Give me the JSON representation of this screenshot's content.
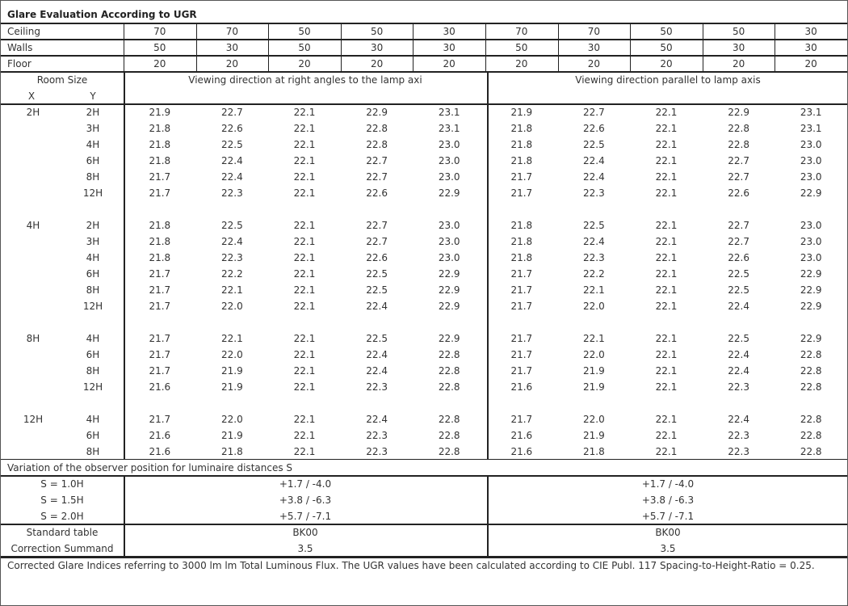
{
  "title": "Glare Evaluation According to UGR",
  "reflectances": [
    {
      "label": "Ceiling",
      "values": [
        "70",
        "70",
        "50",
        "50",
        "30",
        "70",
        "70",
        "50",
        "50",
        "30"
      ]
    },
    {
      "label": "Walls",
      "values": [
        "50",
        "30",
        "50",
        "30",
        "30",
        "50",
        "30",
        "50",
        "30",
        "30"
      ]
    },
    {
      "label": "Floor",
      "values": [
        "20",
        "20",
        "20",
        "20",
        "20",
        "20",
        "20",
        "20",
        "20",
        "20"
      ]
    }
  ],
  "room_size_label": "Room Size",
  "x_label": "X",
  "y_label": "Y",
  "direction_right_angles": "Viewing direction at right angles to the lamp axi",
  "direction_parallel": "Viewing direction parallel to lamp axis",
  "groups": [
    {
      "x": "2H",
      "rows": [
        {
          "y": "2H",
          "values": [
            "21.9",
            "22.7",
            "22.1",
            "22.9",
            "23.1",
            "21.9",
            "22.7",
            "22.1",
            "22.9",
            "23.1"
          ]
        },
        {
          "y": "3H",
          "values": [
            "21.8",
            "22.6",
            "22.1",
            "22.8",
            "23.1",
            "21.8",
            "22.6",
            "22.1",
            "22.8",
            "23.1"
          ]
        },
        {
          "y": "4H",
          "values": [
            "21.8",
            "22.5",
            "22.1",
            "22.8",
            "23.0",
            "21.8",
            "22.5",
            "22.1",
            "22.8",
            "23.0"
          ]
        },
        {
          "y": "6H",
          "values": [
            "21.8",
            "22.4",
            "22.1",
            "22.7",
            "23.0",
            "21.8",
            "22.4",
            "22.1",
            "22.7",
            "23.0"
          ]
        },
        {
          "y": "8H",
          "values": [
            "21.7",
            "22.4",
            "22.1",
            "22.7",
            "23.0",
            "21.7",
            "22.4",
            "22.1",
            "22.7",
            "23.0"
          ]
        },
        {
          "y": "12H",
          "values": [
            "21.7",
            "22.3",
            "22.1",
            "22.6",
            "22.9",
            "21.7",
            "22.3",
            "22.1",
            "22.6",
            "22.9"
          ]
        }
      ]
    },
    {
      "x": "4H",
      "rows": [
        {
          "y": "2H",
          "values": [
            "21.8",
            "22.5",
            "22.1",
            "22.7",
            "23.0",
            "21.8",
            "22.5",
            "22.1",
            "22.7",
            "23.0"
          ]
        },
        {
          "y": "3H",
          "values": [
            "21.8",
            "22.4",
            "22.1",
            "22.7",
            "23.0",
            "21.8",
            "22.4",
            "22.1",
            "22.7",
            "23.0"
          ]
        },
        {
          "y": "4H",
          "values": [
            "21.8",
            "22.3",
            "22.1",
            "22.6",
            "23.0",
            "21.8",
            "22.3",
            "22.1",
            "22.6",
            "23.0"
          ]
        },
        {
          "y": "6H",
          "values": [
            "21.7",
            "22.2",
            "22.1",
            "22.5",
            "22.9",
            "21.7",
            "22.2",
            "22.1",
            "22.5",
            "22.9"
          ]
        },
        {
          "y": "8H",
          "values": [
            "21.7",
            "22.1",
            "22.1",
            "22.5",
            "22.9",
            "21.7",
            "22.1",
            "22.1",
            "22.5",
            "22.9"
          ]
        },
        {
          "y": "12H",
          "values": [
            "21.7",
            "22.0",
            "22.1",
            "22.4",
            "22.9",
            "21.7",
            "22.0",
            "22.1",
            "22.4",
            "22.9"
          ]
        }
      ]
    },
    {
      "x": "8H",
      "rows": [
        {
          "y": "4H",
          "values": [
            "21.7",
            "22.1",
            "22.1",
            "22.5",
            "22.9",
            "21.7",
            "22.1",
            "22.1",
            "22.5",
            "22.9"
          ]
        },
        {
          "y": "6H",
          "values": [
            "21.7",
            "22.0",
            "22.1",
            "22.4",
            "22.8",
            "21.7",
            "22.0",
            "22.1",
            "22.4",
            "22.8"
          ]
        },
        {
          "y": "8H",
          "values": [
            "21.7",
            "21.9",
            "22.1",
            "22.4",
            "22.8",
            "21.7",
            "21.9",
            "22.1",
            "22.4",
            "22.8"
          ]
        },
        {
          "y": "12H",
          "values": [
            "21.6",
            "21.9",
            "22.1",
            "22.3",
            "22.8",
            "21.6",
            "21.9",
            "22.1",
            "22.3",
            "22.8"
          ]
        }
      ]
    },
    {
      "x": "12H",
      "rows": [
        {
          "y": "4H",
          "values": [
            "21.7",
            "22.0",
            "22.1",
            "22.4",
            "22.8",
            "21.7",
            "22.0",
            "22.1",
            "22.4",
            "22.8"
          ]
        },
        {
          "y": "6H",
          "values": [
            "21.6",
            "21.9",
            "22.1",
            "22.3",
            "22.8",
            "21.6",
            "21.9",
            "22.1",
            "22.3",
            "22.8"
          ]
        },
        {
          "y": "8H",
          "values": [
            "21.6",
            "21.8",
            "22.1",
            "22.3",
            "22.8",
            "21.6",
            "21.8",
            "22.1",
            "22.3",
            "22.8"
          ]
        }
      ]
    }
  ],
  "variation_label": "Variation of the observer position for luminaire distances S",
  "variations": [
    {
      "label": "S = 1.0H",
      "right_angles": "+1.7 / -4.0",
      "parallel": "+1.7 / -4.0"
    },
    {
      "label": "S = 1.5H",
      "right_angles": "+3.8 / -6.3",
      "parallel": "+3.8 / -6.3"
    },
    {
      "label": "S = 2.0H",
      "right_angles": "+5.7 / -7.1",
      "parallel": "+5.7 / -7.1"
    }
  ],
  "standard_table": {
    "label": "Standard table",
    "right_angles": "BK00",
    "parallel": "BK00"
  },
  "correction_summand": {
    "label": "Correction Summand",
    "right_angles": "3.5",
    "parallel": "3.5"
  },
  "footer_note": "Corrected Glare Indices referring to 3000 lm lm Total Luminous Flux. The UGR values have been calculated according to CIE Publ. 117    Spacing-to-Height-Ratio = 0.25."
}
